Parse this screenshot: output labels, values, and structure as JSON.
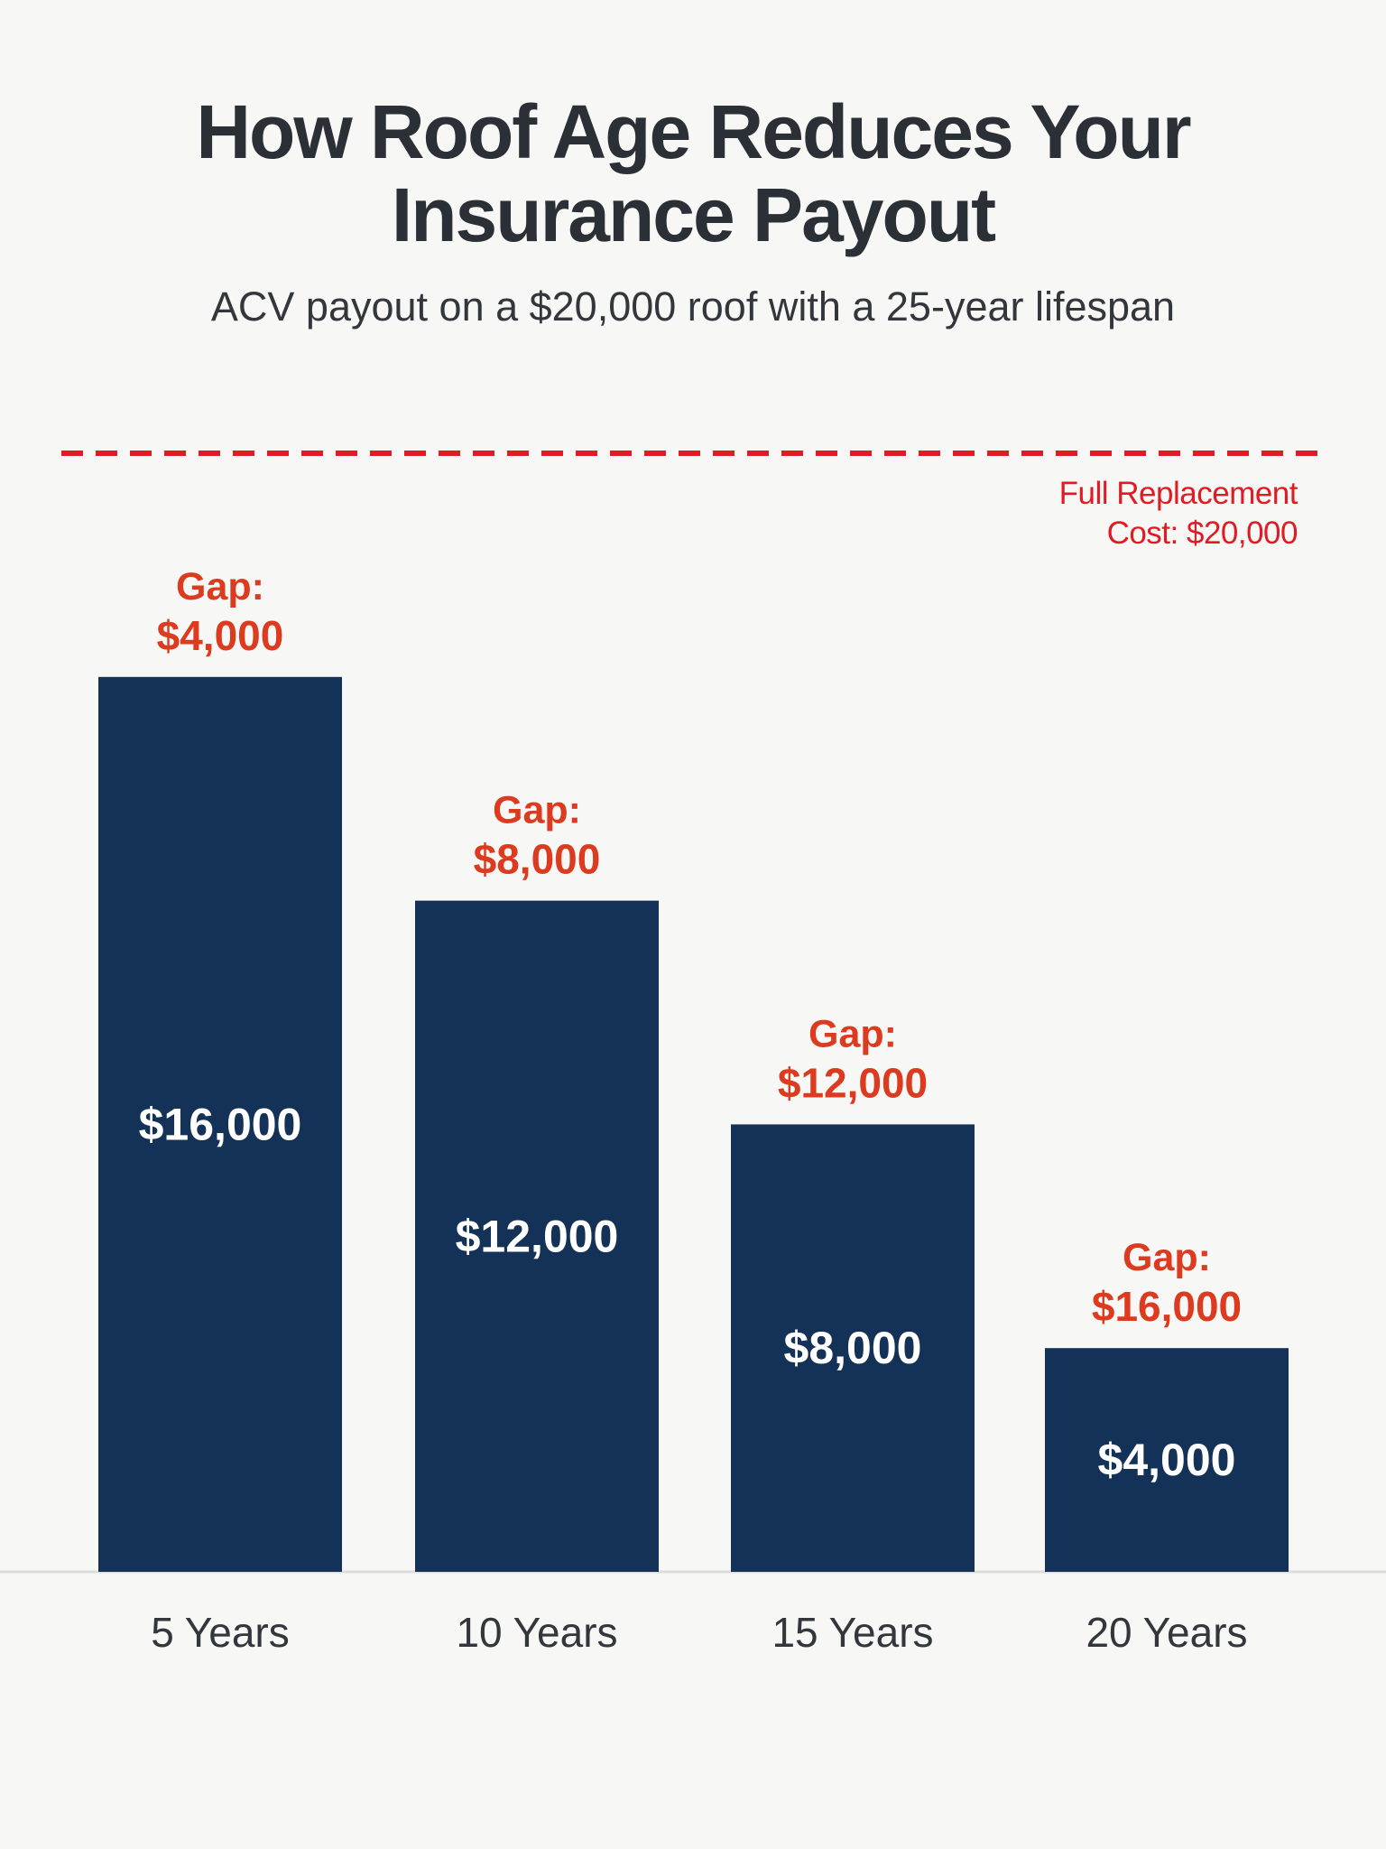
{
  "header": {
    "title_line1": "How Roof Age Reduces Your",
    "title_line2": "Insurance Payout",
    "subtitle": "ACV payout on a $20,000 roof with a 25-year lifespan"
  },
  "reference_line": {
    "label_line1": "Full Replacement",
    "label_line2": "Cost: $20,000",
    "value": 20000,
    "color": "#e01b23"
  },
  "colors": {
    "bar": "#143257",
    "bar_label": "#ffffff",
    "gap_label": "#dc3b1f",
    "axis_label": "#33363b",
    "baseline": "#dcdcdc"
  },
  "chart_data": {
    "type": "bar",
    "categories": [
      "5 Years",
      "10 Years",
      "15 Years",
      "20 Years"
    ],
    "values": [
      16000,
      12000,
      8000,
      4000
    ],
    "value_labels": [
      "$16,000",
      "$12,000",
      "$8,000",
      "$4,000"
    ],
    "gap_prefix": "Gap:",
    "gap_values": [
      4000,
      8000,
      12000,
      16000
    ],
    "gap_labels": [
      "$4,000",
      "$8,000",
      "$12,000",
      "$16,000"
    ],
    "ylim": [
      0,
      20000
    ],
    "grid": false,
    "legend": "none"
  }
}
